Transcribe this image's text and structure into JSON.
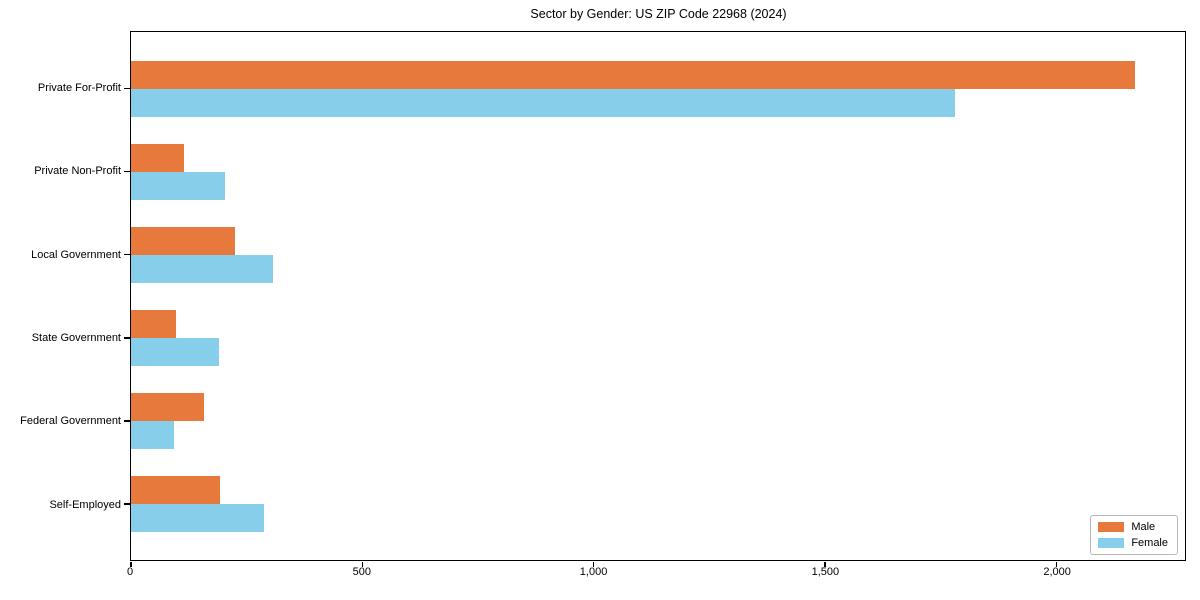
{
  "title": "Sector by Gender: US ZIP Code 22968 (2024)",
  "chart_data": {
    "type": "bar",
    "orientation": "horizontal",
    "title": "Sector by Gender: US ZIP Code 22968 (2024)",
    "xlabel": "",
    "ylabel": "",
    "categories": [
      "Private For-Profit",
      "Private Non-Profit",
      "Local Government",
      "State Government",
      "Federal Government",
      "Self-Employed"
    ],
    "series": [
      {
        "name": "Male",
        "color": "#E8793D",
        "values": [
          2170,
          115,
          225,
          97,
          157,
          193
        ]
      },
      {
        "name": "Female",
        "color": "#87CEEB",
        "values": [
          1780,
          204,
          306,
          191,
          94,
          288
        ]
      }
    ],
    "x_ticks": {
      "values": [
        0,
        500,
        1000,
        1500,
        2000
      ],
      "labels": [
        "0",
        "500",
        "1,000",
        "1,500",
        "2,000"
      ]
    },
    "xlim": [
      0,
      2278
    ],
    "grid": false,
    "legend_position": "lower right",
    "legend_labels": [
      "Male",
      "Female"
    ]
  }
}
